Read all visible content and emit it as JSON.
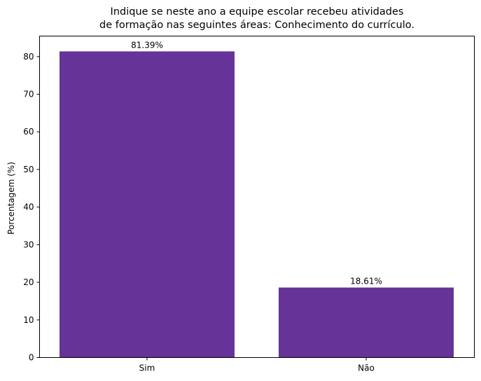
{
  "chart_data": {
    "type": "bar",
    "title_lines": [
      "Indique se neste ano a equipe escolar recebeu atividades",
      "de formação nas seguintes áreas: Conhecimento do currículo."
    ],
    "categories": [
      "Sim",
      "Não"
    ],
    "values": [
      81.39,
      18.61
    ],
    "data_labels": [
      "81.39%",
      "18.61%"
    ],
    "xlabel": "",
    "ylabel": "Porcentagem (%)",
    "ylim": [
      0,
      85.46
    ],
    "yticks": [
      0,
      10,
      20,
      30,
      40,
      50,
      60,
      70,
      80
    ],
    "bar_color": "#663399",
    "grid": false,
    "legend": "none"
  }
}
